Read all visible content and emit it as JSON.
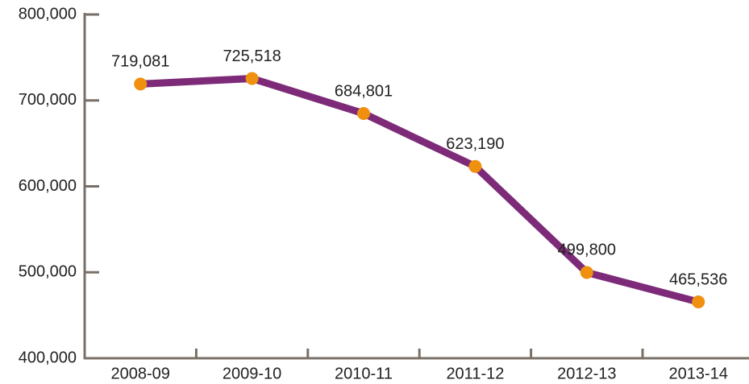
{
  "chart_data": {
    "type": "line",
    "categories": [
      "2008-09",
      "2009-10",
      "2010-11",
      "2011-12",
      "2012-13",
      "2013-14"
    ],
    "series": [
      {
        "color": "#7d2b78",
        "marker_color": "#f0900f",
        "values": [
          719081,
          725518,
          684801,
          623190,
          499800,
          465536
        ],
        "value_labels": [
          "719,081",
          "725,518",
          "684,801",
          "623,190",
          "499,800",
          "465,536"
        ]
      }
    ],
    "ylim": [
      400000,
      800000
    ],
    "yticks": [
      {
        "value": 400000,
        "label": "400,000"
      },
      {
        "value": 500000,
        "label": "500,000"
      },
      {
        "value": 600000,
        "label": "600,000"
      },
      {
        "value": 700000,
        "label": "700,000"
      },
      {
        "value": 800000,
        "label": "800,000"
      }
    ]
  }
}
